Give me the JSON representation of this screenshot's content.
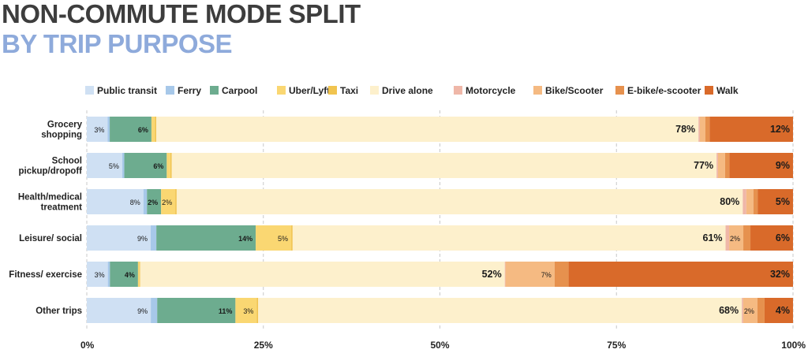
{
  "title": "NON-COMMUTE MODE SPLIT",
  "subtitle": "BY TRIP PURPOSE",
  "chart_data": {
    "type": "bar",
    "orientation": "horizontal",
    "stacked": true,
    "title": "NON-COMMUTE MODE SPLIT",
    "subtitle": "BY TRIP PURPOSE",
    "xlabel": "",
    "ylabel": "",
    "xlim": [
      0,
      100
    ],
    "x_ticks": [
      "0%",
      "25%",
      "50%",
      "75%",
      "100%"
    ],
    "grid": true,
    "legend_position": "top",
    "categories": [
      [
        "Grocery",
        "shopping"
      ],
      [
        "School",
        "pickup/dropoff"
      ],
      [
        "Health/medical",
        "treatment"
      ],
      [
        "Leisure/ social"
      ],
      [
        "Fitness/ exercise"
      ],
      [
        "Other trips"
      ]
    ],
    "series": [
      {
        "name": "Public transit",
        "color": "#cfe0f3",
        "values": [
          3,
          5,
          8,
          9,
          3,
          9
        ],
        "labels": [
          "3%",
          "5%",
          "8%",
          "9%",
          "3%",
          "9%"
        ]
      },
      {
        "name": "Ferry",
        "color": "#a7c8e9",
        "values": [
          0.3,
          0.3,
          0.5,
          0.8,
          0.3,
          0.9
        ],
        "labels": [
          "",
          "",
          "",
          "",
          "",
          ""
        ]
      },
      {
        "name": "Carpool",
        "color": "#6dac8f",
        "values": [
          6,
          6,
          2,
          14,
          4,
          11
        ],
        "labels": [
          "6%",
          "6%",
          "2%",
          "14%",
          "4%",
          "11%"
        ]
      },
      {
        "name": "Uber/Lyft",
        "color": "#fad772",
        "values": [
          0.5,
          0.5,
          2,
          5,
          0.2,
          3
        ],
        "labels": [
          "",
          "",
          "2%",
          "5%",
          "",
          "3%"
        ]
      },
      {
        "name": "Taxi",
        "color": "#f1c44f",
        "values": [
          0.2,
          0.2,
          0.2,
          0.2,
          0.1,
          0.2
        ],
        "labels": [
          "",
          "",
          "",
          "",
          "",
          ""
        ]
      },
      {
        "name": "Drive alone",
        "color": "#fdf0cc",
        "values": [
          78,
          77,
          80,
          61,
          52,
          68
        ],
        "labels": [
          "78%",
          "77%",
          "80%",
          "61%",
          "52%",
          "68%"
        ]
      },
      {
        "name": "Motorcycle",
        "color": "#efb7a8",
        "values": [
          0.2,
          0.2,
          0.5,
          0.5,
          0.1,
          0.2
        ],
        "labels": [
          "",
          "",
          "",
          "",
          "",
          ""
        ]
      },
      {
        "name": "Bike/Scooter",
        "color": "#f5ba82",
        "values": [
          0.8,
          1.0,
          1.0,
          2,
          7,
          2
        ],
        "labels": [
          "",
          "",
          "",
          "2%",
          "7%",
          "2%"
        ]
      },
      {
        "name": "E-bike/e-scooter",
        "color": "#e6914e",
        "values": [
          0.6,
          0.6,
          0.6,
          1,
          2,
          1
        ],
        "labels": [
          "",
          "",
          "",
          "",
          "",
          ""
        ]
      },
      {
        "name": "Walk",
        "color": "#d96a2a",
        "values": [
          12,
          9,
          5,
          6,
          32,
          4
        ],
        "labels": [
          "12%",
          "9%",
          "5%",
          "6%",
          "32%",
          "4%"
        ]
      }
    ]
  }
}
